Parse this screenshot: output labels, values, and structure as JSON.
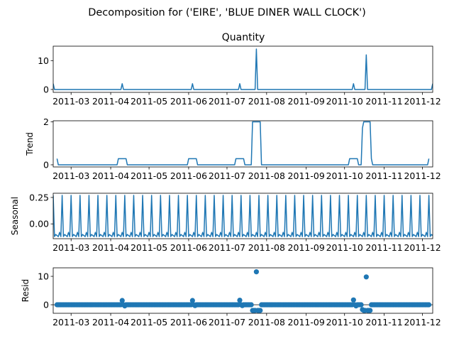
{
  "figure": {
    "title": "Decomposition for ('EIRE', 'BLUE DINER WALL CLOCK')",
    "line_color": "#1f77b4",
    "marker_color": "#1f77b4"
  },
  "chart_data": [
    {
      "name": "quantity",
      "type": "line",
      "title": "Quantity",
      "ylabel": "",
      "ylim": [
        -1,
        15
      ],
      "yticks": [
        0,
        10
      ],
      "xlim": [
        "2011-02-15",
        "2011-12-09"
      ],
      "xticks": [
        "2011-03",
        "2011-04",
        "2011-05",
        "2011-06",
        "2011-07",
        "2011-08",
        "2011-09",
        "2011-10",
        "2011-11",
        "2011-12"
      ],
      "baseline": 0,
      "spikes": [
        {
          "date": "2011-02-15",
          "value": 2
        },
        {
          "date": "2011-04-10",
          "value": 2
        },
        {
          "date": "2011-06-04",
          "value": 2
        },
        {
          "date": "2011-07-11",
          "value": 2
        },
        {
          "date": "2011-07-24",
          "value": 14
        },
        {
          "date": "2011-10-08",
          "value": 2
        },
        {
          "date": "2011-10-18",
          "value": 12
        },
        {
          "date": "2011-12-09",
          "value": 2
        }
      ]
    },
    {
      "name": "trend",
      "type": "line",
      "title": "",
      "ylabel": "Trend",
      "ylim": [
        -0.1,
        2.05
      ],
      "yticks": [
        0,
        2
      ],
      "xlim": [
        "2011-02-15",
        "2011-12-09"
      ],
      "xticks": [
        "2011-03",
        "2011-04",
        "2011-05",
        "2011-06",
        "2011-07",
        "2011-08",
        "2011-09",
        "2011-10",
        "2011-11",
        "2011-12"
      ],
      "points": [
        [
          "2011-02-18",
          0.286
        ],
        [
          "2011-02-19",
          0
        ],
        [
          "2011-04-06",
          0
        ],
        [
          "2011-04-07",
          0.286
        ],
        [
          "2011-04-13",
          0.286
        ],
        [
          "2011-04-14",
          0
        ],
        [
          "2011-05-31",
          0
        ],
        [
          "2011-06-01",
          0.286
        ],
        [
          "2011-06-07",
          0.286
        ],
        [
          "2011-06-08",
          0
        ],
        [
          "2011-07-07",
          0
        ],
        [
          "2011-07-08",
          0.286
        ],
        [
          "2011-07-14",
          0.286
        ],
        [
          "2011-07-15",
          0
        ],
        [
          "2011-07-20",
          0
        ],
        [
          "2011-07-21",
          2
        ],
        [
          "2011-07-27",
          2
        ],
        [
          "2011-07-28",
          0
        ],
        [
          "2011-10-04",
          0
        ],
        [
          "2011-10-05",
          0.286
        ],
        [
          "2011-10-11",
          0.286
        ],
        [
          "2011-10-12",
          0
        ],
        [
          "2011-10-14",
          0
        ],
        [
          "2011-10-15",
          1.71
        ],
        [
          "2011-10-16",
          2
        ],
        [
          "2011-10-21",
          2
        ],
        [
          "2011-10-22",
          0.286
        ],
        [
          "2011-10-23",
          0
        ],
        [
          "2011-12-05",
          0
        ],
        [
          "2011-12-06",
          0.286
        ]
      ]
    },
    {
      "name": "seasonal",
      "type": "line",
      "title": "",
      "ylabel": "Seasonal",
      "ylim": [
        -0.14,
        0.29
      ],
      "yticks": [
        -0.0,
        0.25
      ],
      "ytick_labels": [
        "0.00",
        "0.25"
      ],
      "xlim": [
        "2011-02-15",
        "2011-12-09"
      ],
      "xticks": [
        "2011-03",
        "2011-04",
        "2011-05",
        "2011-06",
        "2011-07",
        "2011-08",
        "2011-09",
        "2011-10",
        "2011-11",
        "2011-12"
      ],
      "period_days": 7,
      "weekly_pattern": [
        0.27,
        -0.12,
        -0.1,
        -0.11,
        -0.12,
        -0.08,
        -0.12
      ]
    },
    {
      "name": "resid",
      "type": "scatter",
      "title": "",
      "ylabel": "Resid",
      "ylim": [
        -3,
        13
      ],
      "yticks": [
        0,
        10
      ],
      "xlim": [
        "2011-02-15",
        "2011-12-09"
      ],
      "xticks": [
        "2011-03",
        "2011-04",
        "2011-05",
        "2011-06",
        "2011-07",
        "2011-08",
        "2011-09",
        "2011-10",
        "2011-11",
        "2011-12"
      ],
      "zero_line": true,
      "outliers": [
        [
          "2011-04-10",
          1.5
        ],
        [
          "2011-04-12",
          -0.4
        ],
        [
          "2011-06-04",
          1.5
        ],
        [
          "2011-06-06",
          -0.3
        ],
        [
          "2011-07-11",
          1.6
        ],
        [
          "2011-07-13",
          -0.3
        ],
        [
          "2011-07-21",
          -2
        ],
        [
          "2011-07-22",
          -2
        ],
        [
          "2011-07-23",
          -2
        ],
        [
          "2011-07-24",
          11.6
        ],
        [
          "2011-07-25",
          -2
        ],
        [
          "2011-07-26",
          -2
        ],
        [
          "2011-07-27",
          -2
        ],
        [
          "2011-10-08",
          1.7
        ],
        [
          "2011-10-10",
          -0.4
        ],
        [
          "2011-10-15",
          -1.7
        ],
        [
          "2011-10-16",
          -2
        ],
        [
          "2011-10-17",
          -2
        ],
        [
          "2011-10-18",
          9.8
        ],
        [
          "2011-10-19",
          -2
        ],
        [
          "2011-10-20",
          -2
        ],
        [
          "2011-10-21",
          -2
        ]
      ]
    }
  ]
}
